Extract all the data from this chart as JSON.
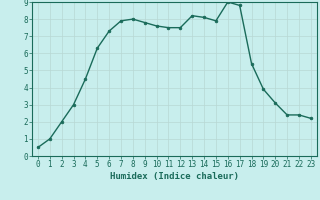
{
  "x": [
    0,
    1,
    2,
    3,
    4,
    5,
    6,
    7,
    8,
    9,
    10,
    11,
    12,
    13,
    14,
    15,
    16,
    17,
    18,
    19,
    20,
    21,
    22,
    23
  ],
  "y": [
    0.5,
    1.0,
    2.0,
    3.0,
    4.5,
    6.3,
    7.3,
    7.9,
    8.0,
    7.8,
    7.6,
    7.5,
    7.5,
    8.2,
    8.1,
    7.9,
    9.0,
    8.8,
    5.4,
    3.9,
    3.1,
    2.4,
    2.4,
    2.2
  ],
  "line_color": "#1a6b5a",
  "marker_color": "#1a6b5a",
  "bg_color": "#c8eeed",
  "grid_color": "#b8d8d4",
  "xlabel": "Humidex (Indice chaleur)",
  "xlim": [
    -0.5,
    23.5
  ],
  "ylim": [
    0,
    9
  ],
  "yticks": [
    0,
    1,
    2,
    3,
    4,
    5,
    6,
    7,
    8,
    9
  ],
  "xticks": [
    0,
    1,
    2,
    3,
    4,
    5,
    6,
    7,
    8,
    9,
    10,
    11,
    12,
    13,
    14,
    15,
    16,
    17,
    18,
    19,
    20,
    21,
    22,
    23
  ],
  "tick_color": "#1a6b5a",
  "xlabel_fontsize": 6.5,
  "tick_fontsize": 5.5,
  "marker_size": 2.0,
  "line_width": 1.0
}
